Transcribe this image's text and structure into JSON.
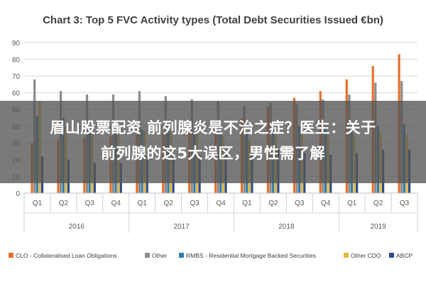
{
  "chart_data": {
    "type": "bar",
    "title": "Chart 3: Top 5 FVC Activity types (Total Debt Securities Issued €bn)",
    "ylim": [
      0,
      90
    ],
    "yticks": [
      "0",
      "10",
      "20",
      "30",
      "40",
      "50",
      "60",
      "70",
      "80",
      "90"
    ],
    "grid": true,
    "legend_position": "bottom",
    "categories": [
      "Q1",
      "Q2",
      "Q3",
      "Q4",
      "Q1",
      "Q2",
      "Q3",
      "Q4",
      "Q1",
      "Q2",
      "Q3",
      "Q4",
      "Q1",
      "Q2",
      "Q3"
    ],
    "groups": [
      {
        "label": "2016",
        "count": 4
      },
      {
        "label": "2017",
        "count": 4
      },
      {
        "label": "2018",
        "count": 4
      },
      {
        "label": "2019",
        "count": 3
      }
    ],
    "series": [
      {
        "name": "CLO - Collateralised Loan Obligations",
        "color": "#E8702A",
        "values": [
          30,
          32,
          33,
          34,
          35,
          36,
          37,
          38,
          45,
          52,
          57,
          61,
          68,
          76,
          83
        ]
      },
      {
        "name": "Other",
        "color": "#8C8C8C",
        "values": [
          68,
          61,
          59,
          59,
          61,
          58,
          56,
          55,
          52,
          54,
          53,
          56,
          59,
          66,
          67
        ]
      },
      {
        "name": "RMBS - Residential Mortgage Backed Securities",
        "color": "#2E7DAF",
        "values": [
          46,
          45,
          38,
          36,
          38,
          38,
          36,
          36,
          37,
          38,
          40,
          40,
          40,
          40,
          41
        ]
      },
      {
        "name": "Other CDO",
        "color": "#E3B53B",
        "values": [
          55,
          40,
          37,
          37,
          37,
          37,
          36,
          34,
          32,
          35,
          37,
          35,
          35,
          36,
          35
        ]
      },
      {
        "name": "ABCP",
        "color": "#2A4A8C",
        "values": [
          22,
          20,
          18,
          18,
          22,
          22,
          23,
          23,
          25,
          26,
          24,
          23,
          24,
          26,
          26
        ]
      }
    ]
  },
  "overlay": {
    "line1": "眉山股票配资 前列腺炎是不治之症？医生：关于",
    "line2": "前列腺的这5大误区，男性需了解"
  }
}
